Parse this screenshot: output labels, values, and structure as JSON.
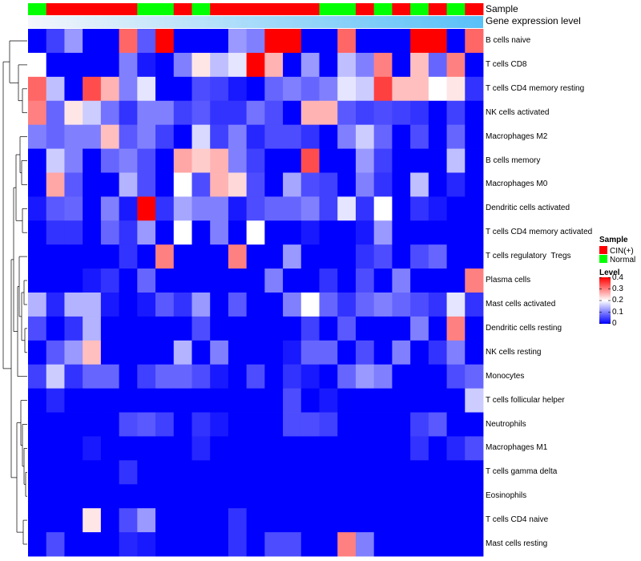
{
  "chart_data": {
    "type": "heatmap",
    "title": "",
    "track_labels": {
      "sample": "Sample",
      "level": "Gene expression level"
    },
    "sample_groups": [
      "Normal",
      "CIN(+)",
      "CIN(+)",
      "CIN(+)",
      "CIN(+)",
      "CIN(+)",
      "Normal",
      "Normal",
      "CIN(+)",
      "Normal",
      "CIN(+)",
      "CIN(+)",
      "CIN(+)",
      "CIN(+)",
      "CIN(+)",
      "CIN(+)",
      "Normal",
      "Normal",
      "CIN(+)",
      "Normal",
      "CIN(+)",
      "Normal",
      "CIN(+)",
      "Normal",
      "CIN(+)"
    ],
    "rows": [
      "B cells naive",
      "T cells CD8",
      "T cells CD4 memory resting",
      "NK cells activated",
      "Macrophages M2",
      "B cells memory",
      "Macrophages M0",
      "Dendritic cells activated",
      "T cells CD4 memory activated",
      "T cells regulatory  Tregs",
      "Plasma cells",
      "Mast cells activated",
      "Dendritic cells resting",
      "NK cells resting",
      "Monocytes",
      "T cells follicular helper",
      "Neutrophils",
      "Macrophages M1",
      "T cells gamma delta",
      "Eosinophils",
      "T cells CD4 naive",
      "Mast cells resting"
    ],
    "values": [
      [
        0,
        0.05,
        0.12,
        0,
        0,
        0.32,
        0.07,
        0.4,
        0,
        0,
        0,
        0.12,
        0.1,
        0.4,
        0.4,
        0,
        0,
        0.32,
        0,
        0,
        0,
        0.4,
        0.4,
        0,
        0.32
      ],
      [
        0.2,
        0,
        0,
        0,
        0,
        0.1,
        0.02,
        0,
        0.1,
        0.22,
        0.15,
        0.18,
        0.4,
        0.26,
        0,
        0.12,
        0,
        0.15,
        0.1,
        0.3,
        0,
        0.25,
        0.08,
        0.3,
        0
      ],
      [
        0.32,
        0.15,
        0,
        0.34,
        0.26,
        0.1,
        0.18,
        0,
        0,
        0.06,
        0.05,
        0.02,
        0,
        0.08,
        0.1,
        0.08,
        0.1,
        0.18,
        0.16,
        0.35,
        0.25,
        0.25,
        0.2,
        0.22,
        0.04
      ],
      [
        0.3,
        0.08,
        0.22,
        0.16,
        0.09,
        0.04,
        0.1,
        0.1,
        0.05,
        0.07,
        0.04,
        0.04,
        0.09,
        0.06,
        0,
        0.26,
        0.26,
        0.07,
        0.05,
        0.06,
        0.05,
        0.04,
        0,
        0.05,
        0
      ],
      [
        0.1,
        0.08,
        0.1,
        0.1,
        0.25,
        0.07,
        0.1,
        0.05,
        0,
        0.17,
        0.05,
        0.1,
        0.03,
        0.06,
        0.06,
        0.04,
        0,
        0.1,
        0.16,
        0.08,
        0,
        0.06,
        0,
        0.08,
        0
      ],
      [
        0,
        0.16,
        0.1,
        0,
        0.08,
        0.1,
        0.06,
        0,
        0.27,
        0.24,
        0.26,
        0.1,
        0.05,
        0,
        0,
        0.34,
        0,
        0,
        0.12,
        0.05,
        0,
        0,
        0,
        0.15,
        0
      ],
      [
        0,
        0.27,
        0.07,
        0,
        0,
        0.14,
        0.06,
        0,
        0.2,
        0.06,
        0.26,
        0.23,
        0.06,
        0,
        0.13,
        0.06,
        0.05,
        0,
        0.1,
        0.04,
        0,
        0.15,
        0,
        0.03,
        0
      ],
      [
        0.02,
        0.07,
        0.08,
        0,
        0.1,
        0.02,
        0.4,
        0.04,
        0.13,
        0.1,
        0.1,
        0.02,
        0.06,
        0.08,
        0.08,
        0.1,
        0.05,
        0.18,
        0.04,
        0.2,
        0,
        0.04,
        0.02,
        0,
        0
      ],
      [
        0,
        0.04,
        0.04,
        0,
        0.08,
        0.04,
        0.12,
        0,
        0.2,
        0,
        0.1,
        0,
        0.2,
        0,
        0,
        0.02,
        0,
        0,
        0.02,
        0.12,
        0,
        0,
        0,
        0,
        0
      ],
      [
        0,
        0,
        0,
        0,
        0,
        0.04,
        0,
        0.3,
        0,
        0,
        0,
        0.3,
        0,
        0,
        0.12,
        0,
        0,
        0,
        0.04,
        0.06,
        0,
        0.06,
        0.08,
        0,
        0
      ],
      [
        0,
        0,
        0,
        0.02,
        0.04,
        0,
        0.08,
        0,
        0,
        0,
        0,
        0,
        0,
        0.1,
        0,
        0,
        0.04,
        0,
        0.06,
        0,
        0.1,
        0,
        0,
        0,
        0.3
      ],
      [
        0.14,
        0.03,
        0.14,
        0.14,
        0.02,
        0,
        0.02,
        0.07,
        0.04,
        0.12,
        0,
        0.07,
        0,
        0,
        0.1,
        0.2,
        0.08,
        0.04,
        0.08,
        0.1,
        0.08,
        0.06,
        0.04,
        0.18,
        0.04
      ],
      [
        0.06,
        0,
        0.04,
        0.14,
        0,
        0,
        0,
        0,
        0,
        0.06,
        0,
        0,
        0,
        0,
        0,
        0.05,
        0,
        0.07,
        0,
        0,
        0,
        0.1,
        0,
        0.3,
        0
      ],
      [
        0,
        0.07,
        0.12,
        0.25,
        0,
        0,
        0,
        0,
        0.14,
        0,
        0.1,
        0,
        0,
        0,
        0.02,
        0.08,
        0.08,
        0,
        0.06,
        0,
        0.1,
        0,
        0.04,
        0.1,
        0
      ],
      [
        0.05,
        0.16,
        0.04,
        0.08,
        0.08,
        0,
        0.05,
        0.08,
        0.08,
        0.06,
        0.02,
        0,
        0.06,
        0,
        0.04,
        0.02,
        0,
        0.08,
        0.12,
        0.1,
        0,
        0,
        0,
        0.06,
        0.08
      ],
      [
        0,
        0.03,
        0,
        0,
        0,
        0,
        0,
        0,
        0,
        0,
        0,
        0,
        0,
        0,
        0.06,
        0,
        0.02,
        0,
        0,
        0,
        0,
        0,
        0,
        0,
        0.16
      ],
      [
        0,
        0,
        0,
        0,
        0,
        0.06,
        0.07,
        0.05,
        0,
        0.04,
        0.02,
        0,
        0,
        0,
        0.06,
        0.06,
        0.05,
        0,
        0,
        0,
        0,
        0.05,
        0.07,
        0,
        0
      ],
      [
        0,
        0,
        0,
        0.02,
        0,
        0,
        0,
        0,
        0,
        0.03,
        0,
        0,
        0,
        0,
        0,
        0,
        0,
        0,
        0,
        0,
        0,
        0.04,
        0,
        0.03,
        0.06
      ],
      [
        0,
        0,
        0,
        0,
        0,
        0.04,
        0,
        0,
        0,
        0,
        0,
        0,
        0,
        0,
        0,
        0,
        0,
        0,
        0,
        0,
        0,
        0,
        0,
        0,
        0
      ],
      [
        0,
        0,
        0,
        0,
        0,
        0,
        0,
        0,
        0,
        0,
        0,
        0,
        0,
        0,
        0,
        0,
        0,
        0,
        0,
        0,
        0,
        0,
        0,
        0,
        0
      ],
      [
        0,
        0,
        0,
        0.22,
        0,
        0.06,
        0.12,
        0,
        0,
        0,
        0,
        0.04,
        0,
        0,
        0,
        0,
        0,
        0,
        0,
        0,
        0,
        0,
        0,
        0,
        0
      ],
      [
        0,
        0.06,
        0,
        0,
        0,
        0.03,
        0.02,
        0,
        0,
        0,
        0,
        0.04,
        0,
        0.06,
        0.06,
        0,
        0,
        0.3,
        0.1,
        0,
        0,
        0,
        0,
        0,
        0
      ]
    ],
    "legend": {
      "sample_title": "Sample",
      "sample_entries": [
        {
          "label": "CIN(+)",
          "color": "#ff0000"
        },
        {
          "label": "Normal",
          "color": "#00ff00"
        }
      ],
      "level_title": "Level",
      "level_ticks": [
        "0.4",
        "0.3",
        "0.2",
        "0.1",
        "0"
      ],
      "level_range": [
        0,
        0.4
      ],
      "colors": {
        "low": "#0000ff",
        "mid": "#ffffff",
        "high": "#ff0000"
      },
      "level_track_colors": {
        "start": "#f4f6fb",
        "end": "#58c0f8"
      }
    }
  }
}
